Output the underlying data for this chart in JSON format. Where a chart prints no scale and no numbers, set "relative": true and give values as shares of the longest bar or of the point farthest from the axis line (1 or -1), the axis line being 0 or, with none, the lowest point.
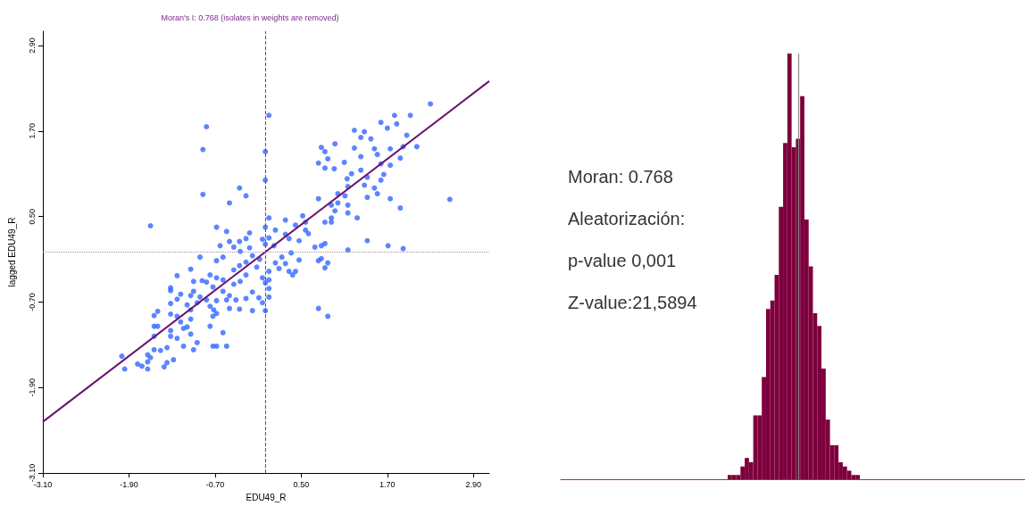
{
  "chart_data": [
    {
      "type": "scatter",
      "title": "Moran's I: 0.768 (isolates in weights are removed)",
      "xlabel": "EDU49_R",
      "ylabel": "lagged EDU49_R",
      "xlim": [
        -3.1,
        3.12
      ],
      "ylim": [
        -3.1,
        3.1
      ],
      "xticks": [
        {
          "value": -3.1,
          "label": "-3.10"
        },
        {
          "value": -1.9,
          "label": "-1.90"
        },
        {
          "value": -0.7,
          "label": "-0.70"
        },
        {
          "value": 0.5,
          "label": "0.50"
        },
        {
          "value": 1.7,
          "label": "1.70"
        },
        {
          "value": 2.9,
          "label": "2.90"
        }
      ],
      "yticks": [
        {
          "value": -3.1,
          "label": "-3.10"
        },
        {
          "value": -1.9,
          "label": "-1.90"
        },
        {
          "value": -0.7,
          "label": "-0.70"
        },
        {
          "value": 0.5,
          "label": "0.50"
        },
        {
          "value": 1.7,
          "label": "1.70"
        },
        {
          "value": 2.9,
          "label": "2.90"
        }
      ],
      "grid": false,
      "marker": "circle",
      "ref_lines": [
        {
          "axis": "x",
          "value": 0,
          "color": "#555555",
          "line_style": "dashed"
        },
        {
          "axis": "y",
          "value": 0,
          "color": "#999999",
          "line_style": "dotted"
        }
      ],
      "series": [
        {
          "type": "scatter",
          "color": "#3366ff",
          "x": [
            2.3,
            0.05,
            2.02,
            1.8,
            -0.82,
            -0.87,
            0.0,
            0.0,
            -0.36,
            -0.87,
            -0.27,
            -0.5,
            -1.6,
            2.57,
            1.88,
            1.42,
            1.71,
            1.92,
            1.15,
            0.74,
            0.87,
            1.61,
            1.24,
            1.38,
            1.7,
            1.83,
            1.33,
            1.47,
            0.97,
            0.78,
            0.83,
            1.24,
            1.52,
            1.74,
            1.97,
            2.11,
            1.92,
            1.33,
            1.56,
            0.87,
            1.1,
            0.74,
            0.96,
            0.83,
            1.61,
            1.74,
            1.88,
            1.2,
            1.14,
            1.33,
            1.42,
            1.65,
            1.38,
            1.52,
            1.61,
            1.56,
            1.15,
            1.01,
            1.11,
            1.42,
            1.74,
            0.74,
            0.92,
            1.01,
            1.15,
            0.97,
            1.15,
            1.28,
            0.83,
            0.92,
            0.92,
            0.52,
            0.56,
            0.42,
            0.56,
            0.6,
            0.47,
            0.28,
            0.05,
            0.0,
            0.14,
            0.33,
            0.28,
            0.05,
            -0.04,
            0.0,
            0.12,
            0.69,
            0.78,
            0.83,
            0.36,
            0.47,
            0.74,
            0.78,
            0.87,
            0.83,
            0.23,
            0.14,
            0.19,
            0.28,
            0.33,
            0.42,
            0.38,
            0.05,
            0.05,
            0.0,
            0.05,
            0.05,
            -0.04,
            0.0,
            -0.18,
            -0.36,
            -0.5,
            -0.27,
            -0.09,
            -0.18,
            -0.04,
            -0.12,
            -0.08,
            -0.18,
            -0.22,
            -0.27,
            -0.22,
            -0.36,
            -0.44,
            -0.5,
            -0.54,
            -0.68,
            -0.63,
            -0.91,
            -0.68,
            -0.59,
            -0.35,
            -0.27,
            -0.36,
            -0.44,
            -0.27,
            -0.35,
            -0.44,
            -0.59,
            -0.68,
            -0.77,
            -0.82,
            -0.88,
            -0.73,
            -0.59,
            -0.5,
            -0.41,
            -0.54,
            -0.68,
            -0.77,
            -0.72,
            -0.68,
            -0.73,
            -0.91,
            -0.82,
            -1.0,
            -1.04,
            -1.23,
            -1.0,
            -1.04,
            -0.95,
            -1.09,
            -1.04,
            -1.23,
            -1.18,
            -1.32,
            -1.32,
            -1.32,
            -1.32,
            -1.23,
            -1.04,
            -1.09,
            -1.18,
            -1.14,
            -1.04,
            -1.23,
            -1.32,
            -1.32,
            -1.5,
            -1.55,
            -1.55,
            -1.5,
            -1.55,
            -0.77,
            -0.59,
            -0.95,
            -0.73,
            -0.68,
            -0.54,
            -1.14,
            -1.0,
            -1.55,
            -1.46,
            -1.37,
            -1.28,
            -1.37,
            -1.41,
            -1.64,
            -1.6,
            -1.64,
            -1.64,
            -1.78,
            -1.72,
            -2.0,
            -1.96
          ],
          "values": [
            2.08,
            1.92,
            1.92,
            1.92,
            1.76,
            1.44,
            1.41,
            1.01,
            0.9,
            0.81,
            0.79,
            0.69,
            0.37,
            0.74,
            0.62,
            0.16,
            0.09,
            0.05,
            0.03,
            -0.79,
            -0.9,
            1.82,
            1.71,
            1.69,
            1.74,
            1.8,
            1.61,
            1.59,
            1.52,
            1.47,
            1.41,
            1.46,
            1.45,
            1.45,
            1.64,
            1.48,
            1.48,
            1.34,
            1.37,
            1.31,
            1.26,
            1.25,
            1.17,
            1.18,
            1.24,
            1.22,
            1.32,
            1.1,
            1.03,
            1.15,
            1.05,
            1.09,
            0.94,
            0.9,
            1.01,
            0.82,
            0.92,
            0.82,
            0.79,
            0.77,
            0.75,
            0.75,
            0.66,
            0.69,
            0.66,
            0.58,
            0.55,
            0.48,
            0.42,
            0.42,
            0.48,
            0.51,
            0.42,
            0.38,
            0.31,
            0.26,
            0.16,
            0.45,
            0.48,
            0.35,
            0.31,
            0.19,
            0.25,
            0.2,
            0.18,
            0.11,
            0.09,
            0.07,
            0.09,
            0.12,
            -0.01,
            -0.11,
            -0.12,
            -0.09,
            -0.15,
            -0.22,
            -0.07,
            -0.15,
            -0.23,
            -0.16,
            -0.27,
            -0.27,
            -0.32,
            -0.27,
            -0.39,
            -0.43,
            -0.51,
            -0.63,
            -0.71,
            -0.82,
            -0.82,
            -0.8,
            -0.79,
            -0.65,
            -0.64,
            -0.56,
            -0.36,
            -0.21,
            -0.1,
            -0.05,
            0.06,
            0.19,
            0.27,
            0.15,
            0.07,
            0.15,
            0.29,
            0.35,
            0.09,
            -0.07,
            -0.12,
            -0.07,
            0.01,
            -0.14,
            -0.19,
            -0.25,
            -0.32,
            -0.41,
            -0.45,
            -0.39,
            -0.36,
            -0.32,
            -0.42,
            -0.4,
            -0.49,
            -0.55,
            -0.61,
            -0.67,
            -0.67,
            -0.68,
            -0.76,
            -0.81,
            -0.86,
            -0.9,
            -0.63,
            -0.67,
            -0.41,
            -0.24,
            -0.33,
            -0.55,
            -0.61,
            -0.71,
            -0.74,
            -0.81,
            -0.66,
            -0.59,
            -0.5,
            -0.54,
            -0.72,
            -0.87,
            -0.9,
            -0.94,
            -1.05,
            -0.98,
            -1.07,
            -1.15,
            -1.21,
            -1.1,
            -1.18,
            -0.83,
            -0.89,
            -1.04,
            -1.04,
            -1.18,
            -1.04,
            -1.13,
            -1.27,
            -1.32,
            -1.32,
            -1.32,
            -1.32,
            -1.37,
            -1.37,
            -1.38,
            -1.34,
            -1.51,
            -1.55,
            -1.61,
            -1.44,
            -1.48,
            -1.54,
            -1.64,
            -1.57,
            -1.6,
            -1.46,
            -1.64
          ]
        },
        {
          "type": "line",
          "marker": "none",
          "color": "#6a1070",
          "x": [
            -3.1,
            3.12
          ],
          "values": [
            -2.38,
            2.4
          ]
        }
      ]
    },
    {
      "type": "bar",
      "relative": true,
      "annotations": [
        "Moran: 0.768",
        "Aleatorización:",
        "p-value 0,001",
        "Z-value:21,5894"
      ],
      "categories": [
        null,
        null,
        null,
        null,
        null,
        null,
        null,
        null,
        null,
        null,
        null,
        null,
        null,
        null,
        null,
        null,
        null,
        null,
        null,
        null,
        null,
        null,
        null,
        null,
        null,
        null,
        null,
        null,
        null,
        null,
        null
      ],
      "series": [
        {
          "color": "#7d003c",
          "values": [
            0.01,
            0.01,
            0.01,
            0.03,
            0.05,
            0.04,
            0.15,
            0.15,
            0.24,
            0.4,
            0.42,
            0.48,
            0.64,
            0.79,
            1,
            0.78,
            0.8,
            0.9,
            0.61,
            0.5,
            0.39,
            0.36,
            0.26,
            0.14,
            0.08,
            0.08,
            0.04,
            0.03,
            0.02,
            0.01,
            0.01
          ]
        }
      ]
    }
  ]
}
